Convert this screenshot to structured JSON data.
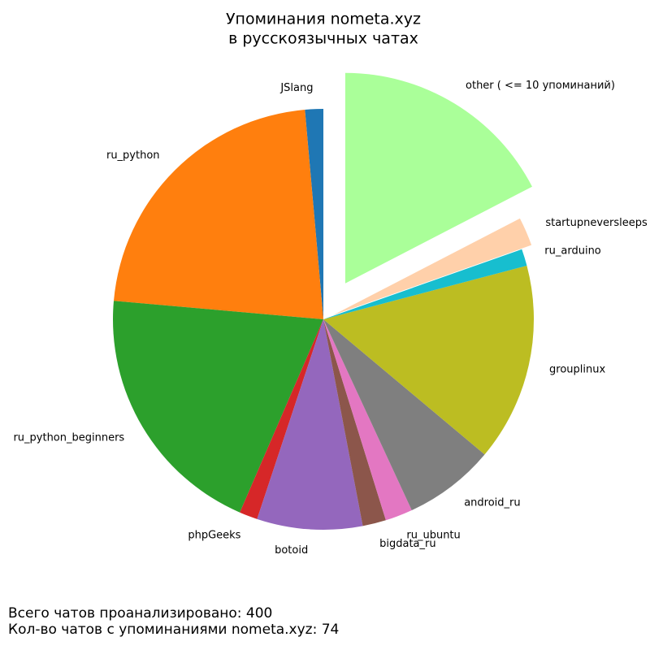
{
  "chart_data": {
    "type": "pie",
    "title": [
      "Упоминания nometa.xyz",
      "в русскоязычных чатах"
    ],
    "categories": [
      "JSlang",
      "ru_python",
      "ru_python_beginners",
      "phpGeeks",
      "botoid",
      "bigdata_ru",
      "ru_ubuntu",
      "android_ru",
      "grouplinux",
      "ru_arduino",
      "startupneversleeps",
      "other ( <= 10 упоминаний)"
    ],
    "values": [
      1.4,
      22.2,
      19.9,
      1.4,
      8.1,
      1.8,
      2.1,
      7.0,
      15.2,
      1.3,
      2.2,
      17.4
    ],
    "colors": [
      "#1f77b4",
      "#ff7f0e",
      "#2ca02c",
      "#d62728",
      "#9467bd",
      "#8c564b",
      "#e377c2",
      "#7f7f7f",
      "#bcbd22",
      "#17becf",
      "#ffd0aa",
      "#aaff99"
    ],
    "explode": [
      0,
      0,
      0,
      0,
      0,
      0,
      0,
      0,
      0,
      0,
      0.05,
      0.2
    ],
    "start_angle": 90,
    "footer": [
      "Всего чатов проанализировано: 400",
      "Кол-во чатов с упоминаниями nometa.xyz: 74"
    ]
  }
}
